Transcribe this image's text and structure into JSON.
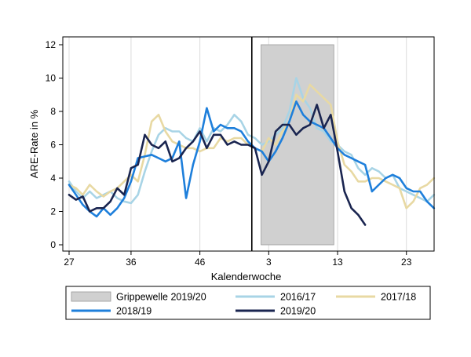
{
  "chart_data": {
    "type": "line",
    "xlabel": "Kalenderwoche",
    "ylabel": "ARE-Rate in %",
    "ylim": [
      0,
      12
    ],
    "yticks": [
      0,
      2,
      4,
      6,
      8,
      10,
      12
    ],
    "x_tick_labels": [
      "27",
      "36",
      "46",
      "3",
      "13",
      "23"
    ],
    "week_order_start": 27,
    "grid": "vertical",
    "legend_position": "bottom",
    "separator_week": "1",
    "shaded_region": {
      "name": "Grippewelle 2019/20",
      "from_week": 2,
      "to_week": 12,
      "color": "#d0d0d0"
    },
    "series": [
      {
        "name": "2016/17",
        "color": "#a8d4e6",
        "values": [
          3.8,
          3.2,
          2.8,
          3.2,
          2.8,
          3.0,
          3.2,
          2.8,
          2.6,
          2.5,
          3.0,
          4.4,
          5.6,
          6.6,
          7.0,
          6.8,
          6.8,
          6.4,
          6.2,
          7.0,
          6.2,
          7.0,
          6.8,
          7.2,
          7.8,
          7.4,
          6.6,
          6.4,
          6.0,
          6.2,
          6.6,
          7.0,
          8.0,
          10.0,
          8.8,
          8.2,
          7.0,
          6.8,
          6.2,
          6.0,
          5.6,
          5.4,
          4.6,
          4.2,
          4.6,
          4.4,
          4.0,
          4.2,
          3.4,
          3.2,
          3.0,
          2.8,
          2.6,
          3.0
        ]
      },
      {
        "name": "2017/18",
        "color": "#e8d9a3",
        "values": [
          3.6,
          3.4,
          3.0,
          3.6,
          3.2,
          2.9,
          3.2,
          3.4,
          3.8,
          4.2,
          3.8,
          5.4,
          7.4,
          7.8,
          6.8,
          6.2,
          6.0,
          5.8,
          5.8,
          5.6,
          5.8,
          5.8,
          6.4,
          6.2,
          6.4,
          6.4,
          6.0,
          5.8,
          5.6,
          6.4,
          6.0,
          6.8,
          7.4,
          9.0,
          8.6,
          9.6,
          9.2,
          8.8,
          8.4,
          6.2,
          4.8,
          4.4,
          3.8,
          3.8,
          4.0,
          4.0,
          3.8,
          3.6,
          3.4,
          2.2,
          2.6,
          3.4,
          3.6,
          4.0
        ]
      },
      {
        "name": "2018/19",
        "color": "#1e7fdb",
        "values": [
          3.6,
          3.0,
          2.4,
          2.0,
          1.7,
          2.2,
          1.8,
          2.2,
          2.8,
          3.8,
          5.2,
          5.3,
          5.4,
          5.2,
          5.0,
          5.2,
          6.2,
          2.8,
          4.8,
          6.2,
          8.2,
          6.8,
          7.2,
          7.0,
          7.0,
          6.8,
          6.2,
          5.8,
          5.6,
          5.0,
          5.6,
          6.4,
          7.4,
          8.6,
          7.8,
          7.4,
          7.2,
          7.0,
          6.4,
          5.8,
          5.4,
          5.2,
          5.0,
          4.8,
          3.2,
          3.6,
          4.0,
          4.2,
          4.0,
          3.4,
          3.2,
          3.2,
          2.6,
          2.2
        ]
      },
      {
        "name": "2019/20",
        "color": "#1a2550",
        "values": [
          3.0,
          2.7,
          2.9,
          2.0,
          2.2,
          2.2,
          2.6,
          3.4,
          3.0,
          4.6,
          4.8,
          6.6,
          6.0,
          5.8,
          6.2,
          5.0,
          5.2,
          5.8,
          6.2,
          6.8,
          5.8,
          6.6,
          6.6,
          6.0,
          6.2,
          6.0,
          6.0,
          5.8,
          4.2,
          5.0,
          6.8,
          7.2,
          7.2,
          6.6,
          7.0,
          7.2,
          8.4,
          7.0,
          7.8,
          5.6,
          3.2,
          2.2,
          1.8,
          1.2,
          null,
          null,
          null,
          null,
          null,
          null,
          null,
          null,
          null,
          null
        ]
      }
    ]
  }
}
